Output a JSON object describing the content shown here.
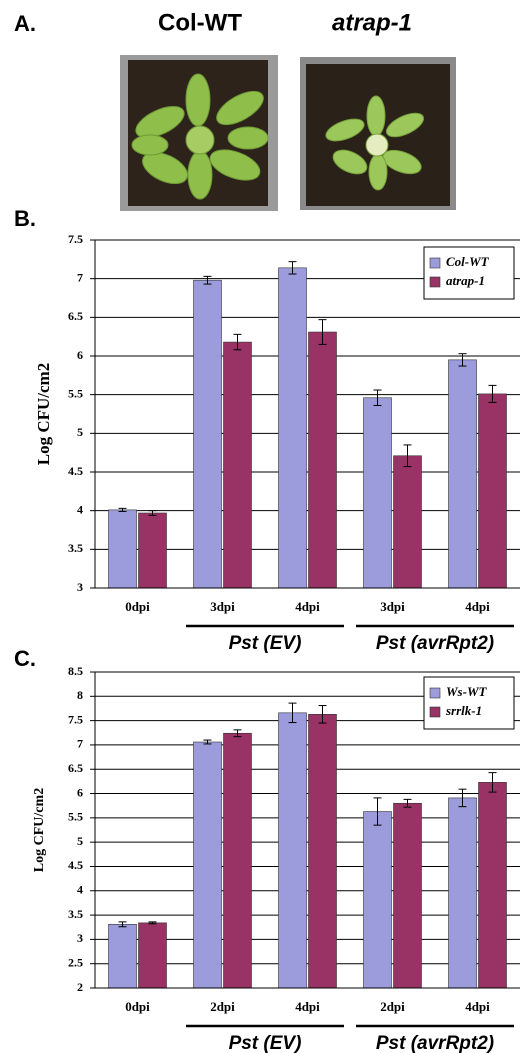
{
  "photo_panel": {
    "label": "A.",
    "captions": [
      "Col-WT",
      "atrap-1"
    ]
  },
  "chart_data": [
    {
      "type": "bar",
      "panel_label": "B.",
      "y_label": "Log CFU/cm2",
      "categories": [
        "0dpi",
        "3dpi",
        "4dpi",
        "3dpi",
        "4dpi"
      ],
      "groups": [
        "Pst (EV)",
        "Pst (avrRpt2)"
      ],
      "series": [
        {
          "name": "Col-WT",
          "color": "#9c9cdc",
          "values": [
            4.01,
            6.98,
            7.14,
            5.46,
            5.95
          ],
          "errors": [
            0.02,
            0.05,
            0.08,
            0.1,
            0.08
          ]
        },
        {
          "name": "atrap-1",
          "color": "#993366",
          "values": [
            3.97,
            6.18,
            6.31,
            4.71,
            5.51
          ],
          "errors": [
            0.03,
            0.1,
            0.16,
            0.14,
            0.11
          ]
        }
      ],
      "ylim": [
        3,
        7.5
      ],
      "yticks": [
        3,
        3.5,
        4,
        4.5,
        5,
        5.5,
        6,
        6.5,
        7,
        7.5
      ],
      "grid": true,
      "legend": "top-right"
    },
    {
      "type": "bar",
      "panel_label": "C.",
      "y_label": "Log CFU/cm2",
      "categories": [
        "0dpi",
        "2dpi",
        "4dpi",
        "2dpi",
        "4dpi"
      ],
      "groups": [
        "Pst (EV)",
        "Pst (avrRpt2)"
      ],
      "series": [
        {
          "name": "Ws-WT",
          "color": "#9c9cdc",
          "values": [
            3.31,
            7.06,
            7.66,
            5.63,
            5.91
          ],
          "errors": [
            0.05,
            0.04,
            0.2,
            0.28,
            0.18
          ]
        },
        {
          "name": "srrlk-1",
          "color": "#993366",
          "values": [
            3.34,
            7.24,
            7.63,
            5.8,
            6.23
          ],
          "errors": [
            0.02,
            0.07,
            0.18,
            0.08,
            0.2
          ]
        }
      ],
      "ylim": [
        2,
        8.5
      ],
      "yticks": [
        2,
        2.5,
        3,
        3.5,
        4,
        4.5,
        5,
        5.5,
        6,
        6.5,
        7,
        7.5,
        8,
        8.5
      ],
      "grid": true,
      "legend": "top-right"
    }
  ]
}
